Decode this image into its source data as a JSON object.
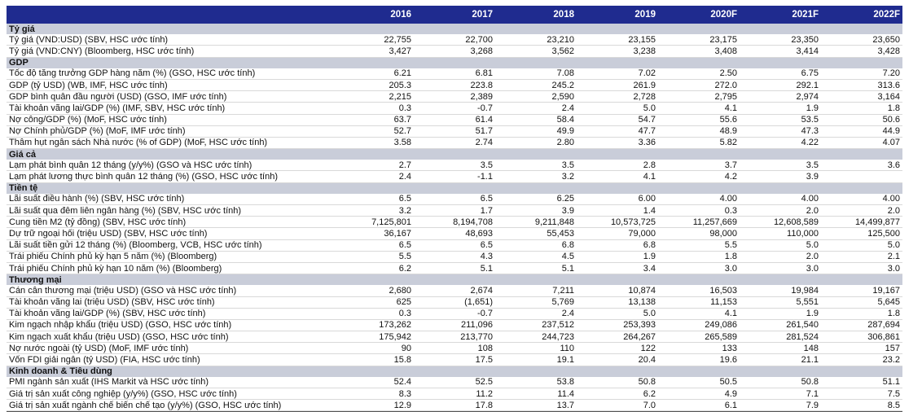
{
  "years": [
    "2016",
    "2017",
    "2018",
    "2019",
    "2020F",
    "2021F",
    "2022F"
  ],
  "sections": [
    {
      "title": "Tỷ giá",
      "rows": [
        {
          "label": "Tỷ giá (VND:USD) (SBV, HSC ước tính)",
          "values": [
            "22,755",
            "22,700",
            "23,210",
            "23,155",
            "23,175",
            "23,350",
            "23,650"
          ]
        },
        {
          "label": "Tỷ giá (VND:CNY) (Bloomberg, HSC ước tính)",
          "values": [
            "3,427",
            "3,268",
            "3,562",
            "3,238",
            "3,408",
            "3,414",
            "3,428"
          ]
        }
      ]
    },
    {
      "title": "GDP",
      "rows": [
        {
          "label": "Tốc độ tăng trưởng GDP hàng năm (%) (GSO, HSC ước tính)",
          "values": [
            "6.21",
            "6.81",
            "7.08",
            "7.02",
            "2.50",
            "6.75",
            "7.20"
          ]
        },
        {
          "label": "GDP (tỷ USD) (WB, IMF, HSC ước tính)",
          "values": [
            "205.3",
            "223.8",
            "245.2",
            "261.9",
            "272.0",
            "292.1",
            "313.6"
          ]
        },
        {
          "label": "GDP bình quân đầu người (USD) (GSO, IMF ước tính)",
          "values": [
            "2,215",
            "2,389",
            "2,590",
            "2,728",
            "2,795",
            "2,974",
            "3,164"
          ]
        },
        {
          "label": "Tài khoản vãng lai/GDP (%) (IMF, SBV, HSC ước tính)",
          "values": [
            "0.3",
            "-0.7",
            "2.4",
            "5.0",
            "4.1",
            "1.9",
            "1.8"
          ]
        },
        {
          "label": "Nợ công/GDP (%) (MoF, HSC ước tính)",
          "values": [
            "63.7",
            "61.4",
            "58.4",
            "54.7",
            "55.6",
            "53.5",
            "50.6"
          ]
        },
        {
          "label": "Nợ Chính phủ/GDP (%) (MoF, IMF ước tính)",
          "values": [
            "52.7",
            "51.7",
            "49.9",
            "47.7",
            "48.9",
            "47.3",
            "44.9"
          ]
        },
        {
          "label": "Thâm hụt ngân sách Nhà nước (% of GDP) (MoF, HSC ước tính)",
          "values": [
            "3.58",
            "2.74",
            "2.80",
            "3.36",
            "5.82",
            "4.22",
            "4.07"
          ]
        }
      ]
    },
    {
      "title": "Giá cả",
      "rows": [
        {
          "label": "Lạm phát bình quân 12 tháng (y/y%) (GSO và HSC ước tính)",
          "values": [
            "2.7",
            "3.5",
            "3.5",
            "2.8",
            "3.7",
            "3.5",
            "3.6"
          ]
        },
        {
          "label": "Lạm phát lương thực bình quân 12 tháng (%) (GSO, HSC ước tính)",
          "values": [
            "2.4",
            "-1.1",
            "3.2",
            "4.1",
            "4.2",
            "3.9",
            ""
          ]
        }
      ]
    },
    {
      "title": "Tiền tệ",
      "rows": [
        {
          "label": "Lãi suất điều hành (%) (SBV, HSC ước tính)",
          "values": [
            "6.5",
            "6.5",
            "6.25",
            "6.00",
            "4.00",
            "4.00",
            "4.00"
          ]
        },
        {
          "label": "Lãi suất qua đêm liên ngân hàng (%) (SBV, HSC ước tính)",
          "values": [
            "3.2",
            "1.7",
            "3.9",
            "1.4",
            "0.3",
            "2.0",
            "2.0"
          ]
        },
        {
          "label": "Cung tiền M2 (tỷ đồng) (SBV, HSC ước tính)",
          "values": [
            "7,125,801",
            "8,194,708",
            "9,211,848",
            "10,573,725",
            "11,257,669",
            "12,608,589",
            "14,499,877"
          ]
        },
        {
          "label": "Dự trữ ngoại hối (triệu USD) (SBV, HSC ước tính)",
          "values": [
            "36,167",
            "48,693",
            "55,453",
            "79,000",
            "98,000",
            "110,000",
            "125,500"
          ]
        },
        {
          "label": "Lãi suất tiền gửi 12 tháng (%) (Bloomberg, VCB, HSC ước tính)",
          "values": [
            "6.5",
            "6.5",
            "6.8",
            "6.8",
            "5.5",
            "5.0",
            "5.0"
          ]
        },
        {
          "label": "Trái phiếu Chính phủ kỳ hạn 5 năm (%) (Bloomberg)",
          "values": [
            "5.5",
            "4.3",
            "4.5",
            "1.9",
            "1.8",
            "2.0",
            "2.1"
          ]
        },
        {
          "label": "Trái phiếu Chính phủ kỳ hạn 10 năm (%) (Bloomberg)",
          "values": [
            "6.2",
            "5.1",
            "5.1",
            "3.4",
            "3.0",
            "3.0",
            "3.0"
          ]
        }
      ]
    },
    {
      "title": "Thương mại",
      "rows": [
        {
          "label": "Cán cân thương mại (triệu USD) (GSO và HSC ước tính)",
          "values": [
            "2,680",
            "2,674",
            "7,211",
            "10,874",
            "16,503",
            "19,984",
            "19,167"
          ]
        },
        {
          "label": "Tài khoản vãng lai (triệu USD) (SBV, HSC ước tính)",
          "values": [
            "625",
            "(1,651)",
            "5,769",
            "13,138",
            "11,153",
            "5,551",
            "5,645"
          ]
        },
        {
          "label": "Tài khoản vãng lai/GDP (%) (SBV, HSC ước tính)",
          "values": [
            "0.3",
            "-0.7",
            "2.4",
            "5.0",
            "4.1",
            "1.9",
            "1.8"
          ]
        },
        {
          "label": "Kim ngạch nhập khẩu (triệu USD) (GSO, HSC ước tính)",
          "values": [
            "173,262",
            "211,096",
            "237,512",
            "253,393",
            "249,086",
            "261,540",
            "287,694"
          ]
        },
        {
          "label": "Kim ngạch xuất khẩu (triệu USD) (GSO, HSC ước tính)",
          "values": [
            "175,942",
            "213,770",
            "244,723",
            "264,267",
            "265,589",
            "281,524",
            "306,861"
          ]
        },
        {
          "label": "Nợ nước ngoài (tỷ USD) (MoF, IMF ước tính)",
          "values": [
            "90",
            "108",
            "110",
            "122",
            "133",
            "148",
            "157"
          ]
        },
        {
          "label": "Vốn FDI giải ngân (tỷ USD) (FIA, HSC ước tính)",
          "values": [
            "15.8",
            "17.5",
            "19.1",
            "20.4",
            "19.6",
            "21.1",
            "23.2"
          ]
        }
      ]
    },
    {
      "title": "Kinh doanh & Tiêu dùng",
      "rows": [
        {
          "label": "PMI ngành sản xuất (IHS Markit và HSC ước tính)",
          "values": [
            "52.4",
            "52.5",
            "53.8",
            "50.8",
            "50.5",
            "50.8",
            "51.1"
          ]
        },
        {
          "label": "Giá trị sản xuất công nghiệp (y/y%) (GSO, HSC ước tính)",
          "values": [
            "8.3",
            "11.2",
            "11.4",
            "6.2",
            "4.9",
            "7.1",
            "7.5"
          ]
        },
        {
          "label": "Giá trị sản xuất ngành chế biến chế tạo (y/y%) (GSO, HSC ước tính)",
          "values": [
            "12.9",
            "17.8",
            "13.7",
            "7.0",
            "6.1",
            "7.9",
            "8.5"
          ]
        }
      ]
    }
  ]
}
